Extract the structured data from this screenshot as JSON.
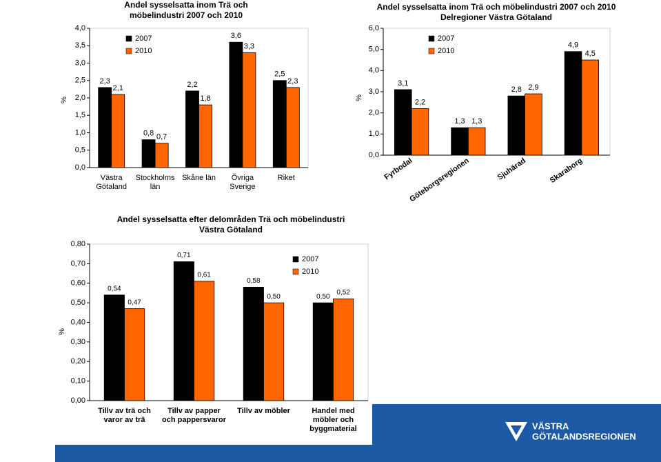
{
  "chart_data": [
    {
      "type": "bar",
      "title": "Andel sysselsatta inom Trä och möbelindustri 2007 och 2010",
      "y_label": "%",
      "categories": [
        "Västra Götaland",
        "Stockholms län",
        "Skåne län",
        "Övriga Sverige",
        "Riket"
      ],
      "series": [
        {
          "name": "2007",
          "color": "#000000",
          "values": [
            2.3,
            0.8,
            2.2,
            3.6,
            2.5
          ],
          "value_labels": [
            "2,3",
            "0,8",
            "2,2",
            "3,6",
            "2,5"
          ]
        },
        {
          "name": "2010",
          "color": "#ff6600",
          "values": [
            2.1,
            0.7,
            1.8,
            3.3,
            2.3
          ],
          "value_labels": [
            "2,1",
            "0,7",
            "1,8",
            "3,3",
            "2,3"
          ]
        }
      ],
      "ylim": [
        0,
        4
      ],
      "yticks": [
        {
          "value": 0,
          "label": "0,0"
        },
        {
          "value": 0.5,
          "label": "0,5"
        },
        {
          "value": 1,
          "label": "1,0"
        },
        {
          "value": 1.5,
          "label": "1,5"
        },
        {
          "value": 2,
          "label": "2,0"
        },
        {
          "value": 2.5,
          "label": "2,5"
        },
        {
          "value": 3,
          "label": "3,0"
        },
        {
          "value": 3.5,
          "label": "3,5"
        },
        {
          "value": 4,
          "label": "4,0"
        }
      ],
      "legend": true
    },
    {
      "type": "bar",
      "title": "Andel sysselsatta inom Trä och möbelindustri 2007 och 2010",
      "subtitle": "Delregioner Västra Götaland",
      "y_label": "%",
      "categories": [
        "Fyrbodal",
        "Göteborgsregionen",
        "Sjuhärad",
        "Skaraborg"
      ],
      "series": [
        {
          "name": "2007",
          "color": "#000000",
          "values": [
            3.1,
            1.3,
            2.8,
            4.9
          ],
          "value_labels": [
            "3,1",
            "1,3",
            "2,8",
            "4,9"
          ]
        },
        {
          "name": "2010",
          "color": "#ff6600",
          "values": [
            2.2,
            1.3,
            2.9,
            4.5
          ],
          "value_labels": [
            "2,2",
            "1,3",
            "2,9",
            "4,5"
          ]
        }
      ],
      "ylim": [
        0,
        6
      ],
      "yticks": [
        {
          "value": 0,
          "label": "0,0"
        },
        {
          "value": 1,
          "label": "1,0"
        },
        {
          "value": 2,
          "label": "2,0"
        },
        {
          "value": 3,
          "label": "3,0"
        },
        {
          "value": 4,
          "label": "4,0"
        },
        {
          "value": 5,
          "label": "5,0"
        },
        {
          "value": 6,
          "label": "6,0"
        }
      ],
      "legend": true
    },
    {
      "type": "bar",
      "title": "Andel sysselsatta efter delområden Trä och möbelindustri Västra Götaland",
      "y_label": "%",
      "categories": [
        "Tillv av trä och varor av trä",
        "Tillv av papper och pappersvaror",
        "Tillv av möbler",
        "Handel med möbler och byggmaterial"
      ],
      "series": [
        {
          "name": "2007",
          "color": "#000000",
          "values": [
            0.54,
            0.71,
            0.58,
            0.5
          ],
          "value_labels": [
            "0,54",
            "0,71",
            "0,58",
            "0,50"
          ]
        },
        {
          "name": "2010",
          "color": "#ff6600",
          "values": [
            0.47,
            0.61,
            0.5,
            0.52
          ],
          "value_labels": [
            "0,47",
            "0,61",
            "0,50",
            "0,52"
          ]
        }
      ],
      "ylim": [
        0,
        0.8
      ],
      "yticks": [
        {
          "value": 0,
          "label": "0,00"
        },
        {
          "value": 0.1,
          "label": "0,10"
        },
        {
          "value": 0.2,
          "label": "0,20"
        },
        {
          "value": 0.3,
          "label": "0,30"
        },
        {
          "value": 0.4,
          "label": "0,40"
        },
        {
          "value": 0.5,
          "label": "0,50"
        },
        {
          "value": 0.6,
          "label": "0,60"
        },
        {
          "value": 0.7,
          "label": "0,70"
        },
        {
          "value": 0.8,
          "label": "0,80"
        }
      ],
      "legend": true
    }
  ],
  "logo": [
    "VÄSTRA",
    "GÖTALANDSREGIONEN"
  ]
}
